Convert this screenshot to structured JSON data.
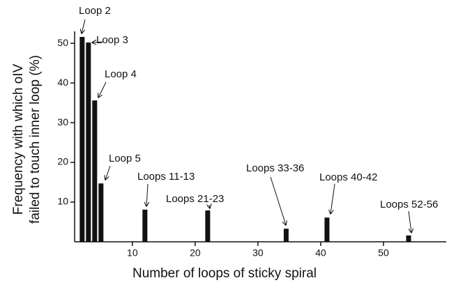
{
  "chart_data": {
    "type": "bar",
    "x_label": "Number of loops of sticky spiral",
    "y_label": [
      "Frequency with which oIV",
      "failed to touch inner loop (%)"
    ],
    "x": [
      2,
      3,
      4,
      5,
      12,
      22,
      34.5,
      41,
      54
    ],
    "values": [
      51.6,
      50.2,
      35.6,
      14.7,
      8.1,
      7.9,
      3.3,
      6.1,
      1.6
    ],
    "annotations": [
      "Loop 2",
      "Loop 3",
      "Loop 4",
      "Loop 5",
      "Loops 11-13",
      "Loops 21-23",
      "Loops 33-36",
      "Loops 40-42",
      "Loops 52-56"
    ],
    "color": "#111111",
    "xlim": [
      0.8,
      60
    ],
    "ylim": [
      0,
      53
    ],
    "xticks": [
      10,
      20,
      30,
      40,
      50
    ],
    "yticks": [
      10,
      20,
      30,
      40,
      50
    ]
  }
}
